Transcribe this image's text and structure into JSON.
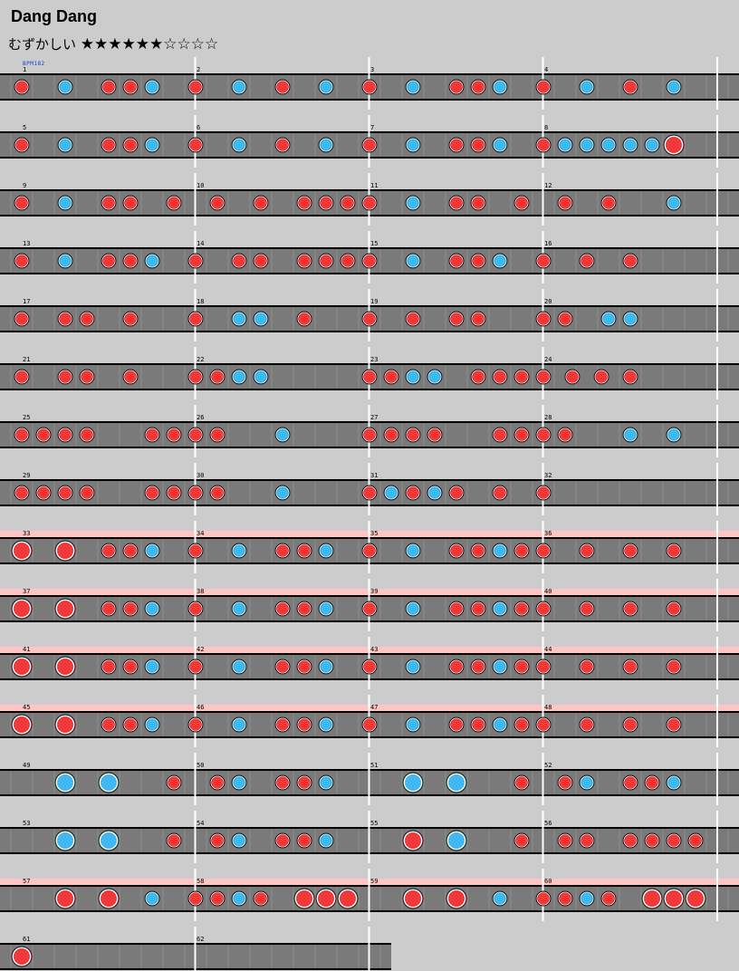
{
  "title": "Dang Dang",
  "difficulty": {
    "label": "むずかしい",
    "stars_filled": 6,
    "stars_total": 10,
    "stars_text": "★★★★★★☆☆☆☆"
  },
  "bpm_label": "BPM182",
  "colors": {
    "background": "#cccccc",
    "lane": "#7a7a7a",
    "gogo": "#ffc4c4",
    "don": "#f03838",
    "ka": "#40b8f0",
    "barline": "#ffffff",
    "rail": "#000000"
  },
  "chart_data": {
    "type": "table",
    "measures_per_row": 4,
    "subdivisions_per_measure": 8,
    "rows": [
      {
        "gogo": false,
        "measures": [
          "1",
          "2",
          "3",
          "4"
        ],
        "notes": [
          [
            0,
            "d"
          ],
          [
            2,
            "k"
          ],
          [
            4,
            "d"
          ],
          [
            5,
            "d"
          ],
          [
            6,
            "k"
          ],
          [
            8,
            "d"
          ],
          [
            10,
            "k"
          ],
          [
            12,
            "d"
          ],
          [
            14,
            "k"
          ],
          [
            16,
            "d"
          ],
          [
            18,
            "k"
          ],
          [
            20,
            "d"
          ],
          [
            21,
            "d"
          ],
          [
            22,
            "k"
          ],
          [
            24,
            "d"
          ],
          [
            26,
            "k"
          ],
          [
            28,
            "d"
          ],
          [
            30,
            "k"
          ]
        ]
      },
      {
        "gogo": false,
        "measures": [
          "5",
          "6",
          "7",
          "8"
        ],
        "notes": [
          [
            0,
            "d"
          ],
          [
            2,
            "k"
          ],
          [
            4,
            "d"
          ],
          [
            5,
            "d"
          ],
          [
            6,
            "k"
          ],
          [
            8,
            "d"
          ],
          [
            10,
            "k"
          ],
          [
            12,
            "d"
          ],
          [
            14,
            "k"
          ],
          [
            16,
            "d"
          ],
          [
            18,
            "k"
          ],
          [
            20,
            "d"
          ],
          [
            21,
            "d"
          ],
          [
            22,
            "k"
          ],
          [
            24,
            "d"
          ],
          [
            25,
            "k"
          ],
          [
            26,
            "k"
          ],
          [
            27,
            "k"
          ],
          [
            28,
            "k"
          ],
          [
            29,
            "k"
          ],
          [
            30,
            "D"
          ]
        ]
      },
      {
        "gogo": false,
        "measures": [
          "9",
          "10",
          "11",
          "12"
        ],
        "notes": [
          [
            0,
            "d"
          ],
          [
            2,
            "k"
          ],
          [
            4,
            "d"
          ],
          [
            5,
            "d"
          ],
          [
            7,
            "d"
          ],
          [
            9,
            "d"
          ],
          [
            11,
            "d"
          ],
          [
            13,
            "d"
          ],
          [
            14,
            "d"
          ],
          [
            15,
            "d"
          ],
          [
            16,
            "d"
          ],
          [
            18,
            "k"
          ],
          [
            20,
            "d"
          ],
          [
            21,
            "d"
          ],
          [
            23,
            "d"
          ],
          [
            25,
            "d"
          ],
          [
            27,
            "d"
          ],
          [
            30,
            "k"
          ]
        ]
      },
      {
        "gogo": false,
        "measures": [
          "13",
          "14",
          "15",
          "16"
        ],
        "notes": [
          [
            0,
            "d"
          ],
          [
            2,
            "k"
          ],
          [
            4,
            "d"
          ],
          [
            5,
            "d"
          ],
          [
            6,
            "k"
          ],
          [
            8,
            "d"
          ],
          [
            10,
            "d"
          ],
          [
            11,
            "d"
          ],
          [
            13,
            "d"
          ],
          [
            14,
            "d"
          ],
          [
            15,
            "d"
          ],
          [
            16,
            "d"
          ],
          [
            18,
            "k"
          ],
          [
            20,
            "d"
          ],
          [
            21,
            "d"
          ],
          [
            22,
            "k"
          ],
          [
            24,
            "d"
          ],
          [
            26,
            "d"
          ],
          [
            28,
            "d"
          ]
        ]
      },
      {
        "gogo": false,
        "measures": [
          "17",
          "18",
          "19",
          "20"
        ],
        "notes": [
          [
            0,
            "d"
          ],
          [
            2,
            "d"
          ],
          [
            3,
            "d"
          ],
          [
            5,
            "d"
          ],
          [
            8,
            "d"
          ],
          [
            10,
            "k"
          ],
          [
            11,
            "k"
          ],
          [
            13,
            "d"
          ],
          [
            16,
            "d"
          ],
          [
            18,
            "d"
          ],
          [
            20,
            "d"
          ],
          [
            21,
            "d"
          ],
          [
            24,
            "d"
          ],
          [
            25,
            "d"
          ],
          [
            27,
            "k"
          ],
          [
            28,
            "k"
          ]
        ]
      },
      {
        "gogo": false,
        "measures": [
          "21",
          "22",
          "23",
          "24"
        ],
        "notes": [
          [
            0,
            "d"
          ],
          [
            2,
            "d"
          ],
          [
            3,
            "d"
          ],
          [
            5,
            "d"
          ],
          [
            8,
            "d"
          ],
          [
            9,
            "d"
          ],
          [
            10,
            "k"
          ],
          [
            11,
            "k"
          ],
          [
            16,
            "d"
          ],
          [
            17,
            "d"
          ],
          [
            18,
            "k"
          ],
          [
            19,
            "k"
          ],
          [
            21,
            "d"
          ],
          [
            22,
            "d"
          ],
          [
            23,
            "d"
          ],
          [
            24,
            "d"
          ],
          [
            25.33,
            "d"
          ],
          [
            26.67,
            "d"
          ],
          [
            28,
            "d"
          ]
        ]
      },
      {
        "gogo": false,
        "measures": [
          "25",
          "26",
          "27",
          "28"
        ],
        "notes": [
          [
            0,
            "d"
          ],
          [
            1,
            "d"
          ],
          [
            2,
            "d"
          ],
          [
            3,
            "d"
          ],
          [
            6,
            "d"
          ],
          [
            7,
            "d"
          ],
          [
            8,
            "d"
          ],
          [
            9,
            "d"
          ],
          [
            12,
            "k"
          ],
          [
            16,
            "d"
          ],
          [
            17,
            "d"
          ],
          [
            18,
            "d"
          ],
          [
            19,
            "d"
          ],
          [
            22,
            "d"
          ],
          [
            23,
            "d"
          ],
          [
            24,
            "d"
          ],
          [
            25,
            "d"
          ],
          [
            28,
            "k"
          ],
          [
            30,
            "k"
          ]
        ]
      },
      {
        "gogo": false,
        "measures": [
          "29",
          "30",
          "31",
          "32"
        ],
        "notes": [
          [
            0,
            "d"
          ],
          [
            1,
            "d"
          ],
          [
            2,
            "d"
          ],
          [
            3,
            "d"
          ],
          [
            6,
            "d"
          ],
          [
            7,
            "d"
          ],
          [
            8,
            "d"
          ],
          [
            9,
            "d"
          ],
          [
            12,
            "k"
          ],
          [
            16,
            "d"
          ],
          [
            17,
            "k"
          ],
          [
            18,
            "d"
          ],
          [
            19,
            "k"
          ],
          [
            20,
            "d"
          ],
          [
            22,
            "d"
          ],
          [
            24,
            "d"
          ]
        ]
      },
      {
        "gogo": true,
        "measures": [
          "33",
          "34",
          "35",
          "36"
        ],
        "notes": [
          [
            0,
            "D"
          ],
          [
            2,
            "D"
          ],
          [
            4,
            "d"
          ],
          [
            5,
            "d"
          ],
          [
            6,
            "k"
          ],
          [
            8,
            "d"
          ],
          [
            10,
            "k"
          ],
          [
            12,
            "d"
          ],
          [
            13,
            "d"
          ],
          [
            14,
            "k"
          ],
          [
            16,
            "d"
          ],
          [
            18,
            "k"
          ],
          [
            20,
            "d"
          ],
          [
            21,
            "d"
          ],
          [
            22,
            "k"
          ],
          [
            23,
            "d"
          ],
          [
            24,
            "d"
          ],
          [
            26,
            "d"
          ],
          [
            28,
            "d"
          ],
          [
            30,
            "d"
          ]
        ]
      },
      {
        "gogo": true,
        "measures": [
          "37",
          "38",
          "39",
          "40"
        ],
        "notes": [
          [
            0,
            "D"
          ],
          [
            2,
            "D"
          ],
          [
            4,
            "d"
          ],
          [
            5,
            "d"
          ],
          [
            6,
            "k"
          ],
          [
            8,
            "d"
          ],
          [
            10,
            "k"
          ],
          [
            12,
            "d"
          ],
          [
            13,
            "d"
          ],
          [
            14,
            "k"
          ],
          [
            16,
            "d"
          ],
          [
            18,
            "k"
          ],
          [
            20,
            "d"
          ],
          [
            21,
            "d"
          ],
          [
            22,
            "k"
          ],
          [
            23,
            "d"
          ],
          [
            24,
            "d"
          ],
          [
            26,
            "d"
          ],
          [
            28,
            "d"
          ],
          [
            30,
            "d"
          ]
        ]
      },
      {
        "gogo": true,
        "measures": [
          "41",
          "42",
          "43",
          "44"
        ],
        "notes": [
          [
            0,
            "D"
          ],
          [
            2,
            "D"
          ],
          [
            4,
            "d"
          ],
          [
            5,
            "d"
          ],
          [
            6,
            "k"
          ],
          [
            8,
            "d"
          ],
          [
            10,
            "k"
          ],
          [
            12,
            "d"
          ],
          [
            13,
            "d"
          ],
          [
            14,
            "k"
          ],
          [
            16,
            "d"
          ],
          [
            18,
            "k"
          ],
          [
            20,
            "d"
          ],
          [
            21,
            "d"
          ],
          [
            22,
            "k"
          ],
          [
            23,
            "d"
          ],
          [
            24,
            "d"
          ],
          [
            26,
            "d"
          ],
          [
            28,
            "d"
          ],
          [
            30,
            "d"
          ]
        ]
      },
      {
        "gogo": true,
        "measures": [
          "45",
          "46",
          "47",
          "48"
        ],
        "notes": [
          [
            0,
            "D"
          ],
          [
            2,
            "D"
          ],
          [
            4,
            "d"
          ],
          [
            5,
            "d"
          ],
          [
            6,
            "k"
          ],
          [
            8,
            "d"
          ],
          [
            10,
            "k"
          ],
          [
            12,
            "d"
          ],
          [
            13,
            "d"
          ],
          [
            14,
            "k"
          ],
          [
            16,
            "d"
          ],
          [
            18,
            "k"
          ],
          [
            20,
            "d"
          ],
          [
            21,
            "d"
          ],
          [
            22,
            "k"
          ],
          [
            23,
            "d"
          ],
          [
            24,
            "d"
          ],
          [
            26,
            "d"
          ],
          [
            28,
            "d"
          ],
          [
            30,
            "d"
          ]
        ]
      },
      {
        "gogo": false,
        "measures": [
          "49",
          "50",
          "51",
          "52"
        ],
        "notes": [
          [
            2,
            "K"
          ],
          [
            4,
            "K"
          ],
          [
            7,
            "d"
          ],
          [
            9,
            "d"
          ],
          [
            10,
            "k"
          ],
          [
            12,
            "d"
          ],
          [
            13,
            "d"
          ],
          [
            14,
            "k"
          ],
          [
            18,
            "K"
          ],
          [
            20,
            "K"
          ],
          [
            23,
            "d"
          ],
          [
            25,
            "d"
          ],
          [
            26,
            "k"
          ],
          [
            28,
            "d"
          ],
          [
            29,
            "d"
          ],
          [
            30,
            "k"
          ]
        ]
      },
      {
        "gogo": false,
        "measures": [
          "53",
          "54",
          "55",
          "56"
        ],
        "notes": [
          [
            2,
            "K"
          ],
          [
            4,
            "K"
          ],
          [
            7,
            "d"
          ],
          [
            9,
            "d"
          ],
          [
            10,
            "k"
          ],
          [
            12,
            "d"
          ],
          [
            13,
            "d"
          ],
          [
            14,
            "k"
          ],
          [
            18,
            "D"
          ],
          [
            20,
            "K"
          ],
          [
            23,
            "d"
          ],
          [
            25,
            "d"
          ],
          [
            26,
            "d"
          ],
          [
            28,
            "d"
          ],
          [
            29,
            "d"
          ],
          [
            30,
            "d"
          ],
          [
            31,
            "d"
          ]
        ]
      },
      {
        "gogo": true,
        "measures": [
          "57",
          "58",
          "59",
          "60"
        ],
        "notes": [
          [
            2,
            "D"
          ],
          [
            4,
            "D"
          ],
          [
            6,
            "k"
          ],
          [
            8,
            "d"
          ],
          [
            9,
            "d"
          ],
          [
            10,
            "k"
          ],
          [
            11,
            "d"
          ],
          [
            13,
            "D"
          ],
          [
            14,
            "D"
          ],
          [
            15,
            "D"
          ],
          [
            18,
            "D"
          ],
          [
            20,
            "D"
          ],
          [
            22,
            "k"
          ],
          [
            24,
            "d"
          ],
          [
            25,
            "d"
          ],
          [
            26,
            "k"
          ],
          [
            27,
            "d"
          ],
          [
            29,
            "D"
          ],
          [
            30,
            "D"
          ],
          [
            31,
            "D"
          ]
        ]
      },
      {
        "gogo": false,
        "measures": [
          "61",
          "62"
        ],
        "notes": [
          [
            0,
            "D"
          ]
        ]
      }
    ]
  }
}
